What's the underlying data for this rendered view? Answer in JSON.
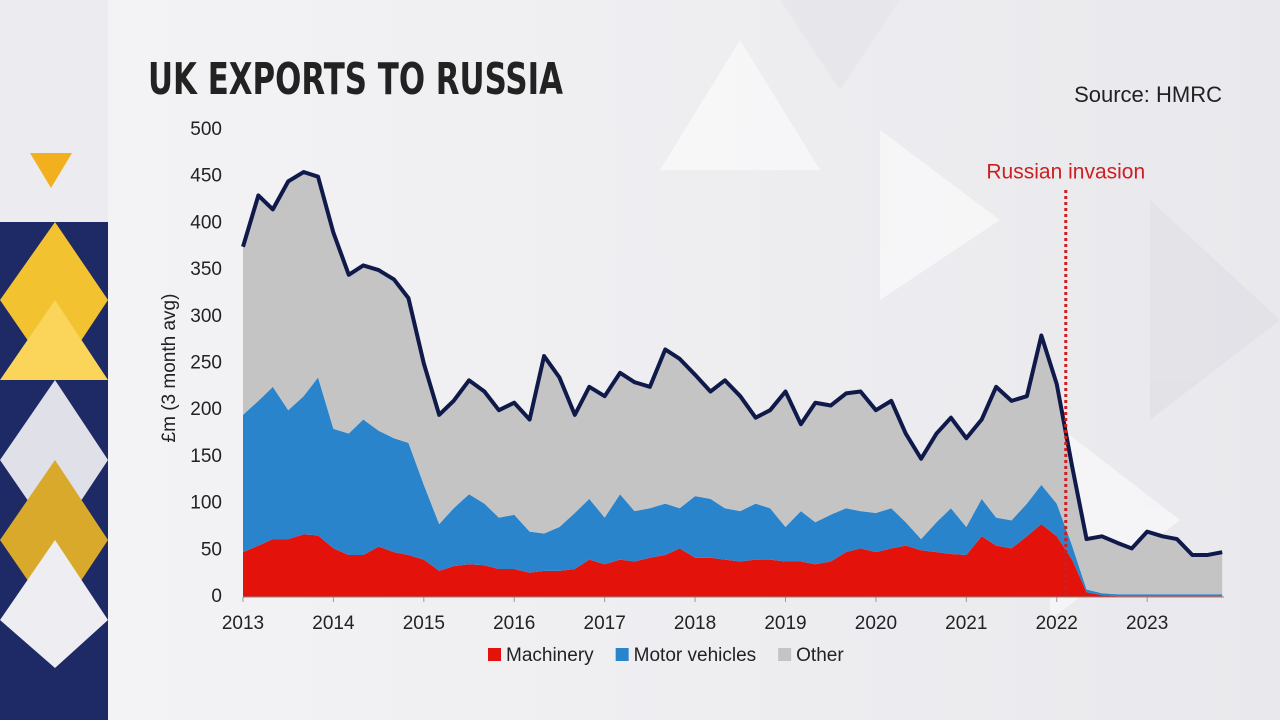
{
  "chart_data": {
    "type": "stacked-area",
    "title": "UK EXPORTS TO RUSSIA",
    "source": "Source: HMRC",
    "ylabel": "£m (3 month avg)",
    "annotation": {
      "text": "Russian invasion",
      "x": 2022.1,
      "color": "#cc1f1f"
    },
    "line_color": "#0f1a4a",
    "x": [
      2013,
      2013.17,
      2013.33,
      2013.5,
      2013.67,
      2013.83,
      2014,
      2014.17,
      2014.33,
      2014.5,
      2014.67,
      2014.83,
      2015,
      2015.17,
      2015.33,
      2015.5,
      2015.67,
      2015.83,
      2016,
      2016.17,
      2016.33,
      2016.5,
      2016.67,
      2016.83,
      2017,
      2017.17,
      2017.33,
      2017.5,
      2017.67,
      2017.83,
      2018,
      2018.17,
      2018.33,
      2018.5,
      2018.67,
      2018.83,
      2019,
      2019.17,
      2019.33,
      2019.5,
      2019.67,
      2019.83,
      2020,
      2020.17,
      2020.33,
      2020.5,
      2020.67,
      2020.83,
      2021,
      2021.17,
      2021.33,
      2021.5,
      2021.67,
      2021.83,
      2022,
      2022.17,
      2022.33,
      2022.5,
      2022.67,
      2022.83,
      2023,
      2023.17,
      2023.33,
      2023.5,
      2023.67,
      2023.83
    ],
    "series": [
      {
        "name": "Machinery",
        "color": "#e3120b",
        "values": [
          48,
          55,
          62,
          62,
          67,
          66,
          52,
          45,
          45,
          54,
          48,
          45,
          40,
          28,
          33,
          35,
          34,
          30,
          30,
          26,
          28,
          28,
          30,
          40,
          35,
          40,
          38,
          42,
          45,
          52,
          42,
          42,
          40,
          38,
          40,
          40,
          38,
          38,
          35,
          38,
          48,
          52,
          48,
          52,
          55,
          50,
          48,
          46,
          45,
          65,
          55,
          52,
          65,
          78,
          65,
          40,
          5,
          2,
          1,
          1,
          1,
          1,
          1,
          1,
          1,
          1
        ]
      },
      {
        "name": "Motor vehicles",
        "color": "#2a84cc",
        "values": [
          147,
          155,
          163,
          138,
          148,
          169,
          128,
          130,
          145,
          124,
          122,
          120,
          80,
          50,
          62,
          75,
          66,
          55,
          58,
          44,
          40,
          47,
          60,
          65,
          50,
          70,
          54,
          53,
          55,
          43,
          66,
          63,
          55,
          54,
          60,
          55,
          37,
          54,
          45,
          50,
          47,
          40,
          42,
          43,
          25,
          12,
          32,
          49,
          30,
          40,
          30,
          30,
          35,
          42,
          35,
          15,
          3,
          2,
          2,
          2,
          2,
          2,
          2,
          2,
          2,
          2
        ]
      },
      {
        "name": "Other",
        "color": "#c4c4c4",
        "values": [
          180,
          220,
          190,
          245,
          240,
          215,
          210,
          170,
          165,
          172,
          170,
          155,
          130,
          117,
          115,
          122,
          120,
          115,
          120,
          120,
          190,
          160,
          105,
          120,
          130,
          130,
          138,
          130,
          165,
          160,
          130,
          115,
          137,
          123,
          92,
          105,
          145,
          93,
          128,
          117,
          123,
          128,
          110,
          115,
          95,
          86,
          95,
          97,
          95,
          85,
          140,
          128,
          115,
          160,
          128,
          85,
          54,
          61,
          55,
          49,
          67,
          62,
          59,
          42,
          42,
          45
        ]
      }
    ],
    "xlim": [
      2013,
      2023.85
    ],
    "xticks": [
      2013,
      2014,
      2015,
      2016,
      2017,
      2018,
      2019,
      2020,
      2021,
      2022,
      2023
    ],
    "ylim": [
      0,
      500
    ],
    "yticks": [
      0,
      50,
      100,
      150,
      200,
      250,
      300,
      350,
      400,
      450,
      500
    ]
  }
}
